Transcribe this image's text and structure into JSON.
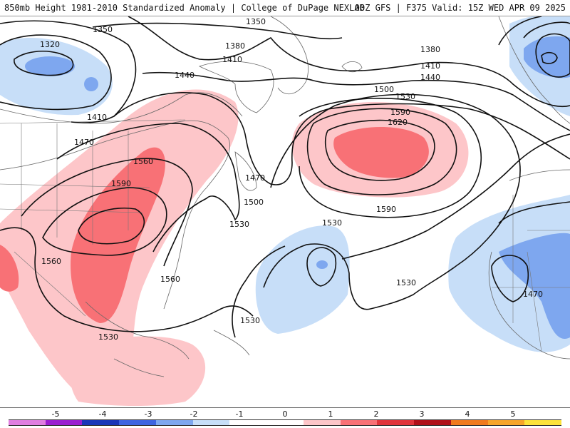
{
  "header": {
    "title_left": "850mb Height 1981-2010 Standardized Anomaly | College of DuPage NEXLAB",
    "title_right": "00Z GFS | F375 Valid: 15Z WED APR 09 2025"
  },
  "colors": {
    "anom_pos_1": "#fdc6c9",
    "anom_pos_2": "#f87176",
    "anom_neg_1": "#c7def8",
    "anom_neg_2": "#7ea7ef",
    "anom_neg_3": "#3e64e0",
    "contour": "#111111",
    "coast": "#666666"
  },
  "contour_labels": [
    {
      "text": "1320"
    },
    {
      "text": "1350"
    },
    {
      "text": "1350"
    },
    {
      "text": "1380"
    },
    {
      "text": "1410"
    },
    {
      "text": "1410"
    },
    {
      "text": "1440"
    },
    {
      "text": "1470"
    },
    {
      "text": "1560"
    },
    {
      "text": "1590"
    },
    {
      "text": "1470"
    },
    {
      "text": "1500"
    },
    {
      "text": "1530"
    },
    {
      "text": "1560"
    },
    {
      "text": "1560"
    },
    {
      "text": "1530"
    },
    {
      "text": "1530"
    },
    {
      "text": "1590"
    },
    {
      "text": "1620"
    },
    {
      "text": "1590"
    },
    {
      "text": "1530"
    },
    {
      "text": "1500"
    },
    {
      "text": "1530"
    },
    {
      "text": "1380"
    },
    {
      "text": "1410"
    },
    {
      "text": "1440"
    },
    {
      "text": "1530"
    },
    {
      "text": "1470"
    }
  ],
  "colorbar": {
    "ticks": [
      "-5",
      "-4",
      "-3",
      "-2",
      "-1",
      "0",
      "1",
      "2",
      "3",
      "4",
      "5"
    ],
    "segments": [
      {
        "color": "#e07ee0"
      },
      {
        "color": "#9a1ed0"
      },
      {
        "color": "#1a36b8"
      },
      {
        "color": "#3e64e0"
      },
      {
        "color": "#7ea7ef"
      },
      {
        "color": "#c7def8"
      },
      {
        "color": "#ffffff"
      },
      {
        "color": "#ffffff"
      },
      {
        "color": "#fdc6c9"
      },
      {
        "color": "#f87176"
      },
      {
        "color": "#e0343b"
      },
      {
        "color": "#b0101a"
      },
      {
        "color": "#f07a1e"
      },
      {
        "color": "#f7a52a"
      },
      {
        "color": "#fce23a"
      }
    ]
  }
}
